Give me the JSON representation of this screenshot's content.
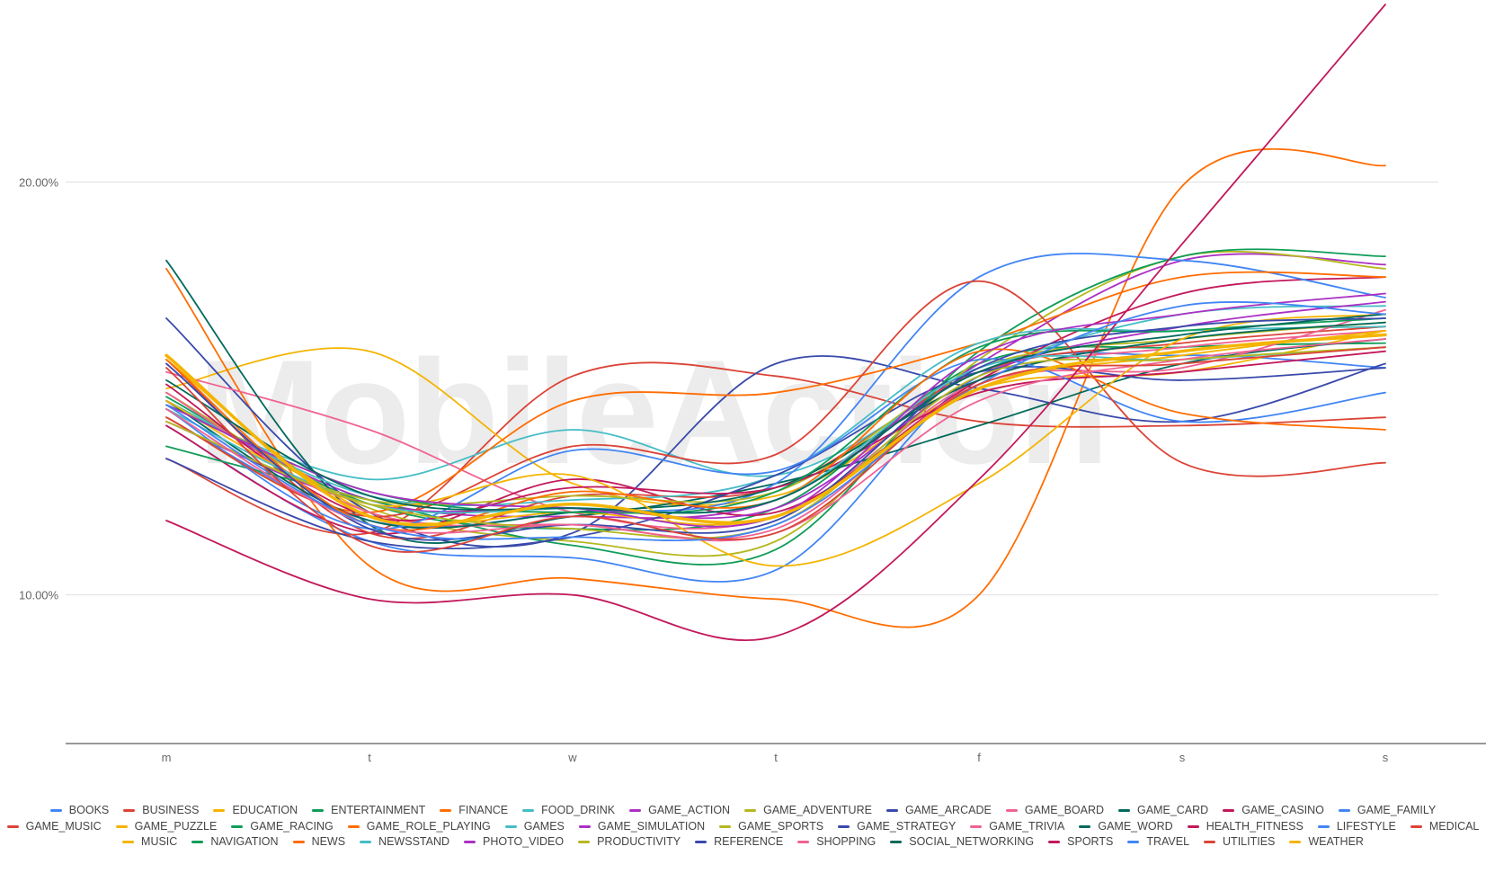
{
  "watermark": "MobileAction",
  "chart_data": {
    "type": "line",
    "title": "",
    "xlabel": "",
    "ylabel": "",
    "categories": [
      "m",
      "t",
      "w",
      "t",
      "f",
      "s",
      "s"
    ],
    "y_ticks": [
      {
        "value": 20,
        "label": "20.00%"
      },
      {
        "value": 10,
        "label": "10.00%"
      }
    ],
    "ylim": [
      6.4,
      24.3
    ],
    "grid": true,
    "legend_position": "bottom",
    "series": [
      {
        "name": "BOOKS",
        "color": "#4285f4",
        "values": [
          14.1,
          11.3,
          10.9,
          10.6,
          15.3,
          15.8,
          15.5
        ]
      },
      {
        "name": "BUSINESS",
        "color": "#db4437",
        "values": [
          13.3,
          11.5,
          15.3,
          15.3,
          14.2,
          14.1,
          14.3
        ]
      },
      {
        "name": "EDUCATION",
        "color": "#f4b400",
        "values": [
          15.0,
          15.9,
          12.7,
          12.4,
          15.0,
          15.4,
          16.4
        ]
      },
      {
        "name": "ENTERTAINMENT",
        "color": "#0f9d58",
        "values": [
          14.8,
          12.2,
          11.6,
          12.1,
          15.6,
          16.0,
          16.1
        ]
      },
      {
        "name": "FINANCE",
        "color": "#ff6d00",
        "values": [
          17.9,
          10.7,
          10.4,
          9.9,
          10.0,
          19.9,
          20.4
        ]
      },
      {
        "name": "FOOD_DRINK",
        "color": "#46bdc6",
        "values": [
          14.6,
          12.8,
          14.0,
          12.9,
          15.4,
          16.8,
          17.0
        ]
      },
      {
        "name": "GAME_ACTION",
        "color": "#ab30c4",
        "values": [
          14.7,
          12.3,
          11.9,
          12.3,
          15.6,
          18.1,
          18.0
        ]
      },
      {
        "name": "GAME_ADVENTURE",
        "color": "#b5b820",
        "values": [
          14.9,
          12.1,
          11.3,
          11.3,
          15.7,
          18.2,
          17.9
        ]
      },
      {
        "name": "GAME_ARCADE",
        "color": "#3949ab",
        "values": [
          16.7,
          12.0,
          11.5,
          15.6,
          15.0,
          14.2,
          15.6
        ]
      },
      {
        "name": "GAME_BOARD",
        "color": "#f06292",
        "values": [
          15.4,
          14.0,
          12.0,
          11.9,
          15.2,
          16.0,
          16.4
        ]
      },
      {
        "name": "GAME_CARD",
        "color": "#00695c",
        "values": [
          18.1,
          11.7,
          11.9,
          12.7,
          14.1,
          15.6,
          16.2
        ]
      },
      {
        "name": "GAME_CASINO",
        "color": "#c2185b",
        "values": [
          14.1,
          11.5,
          12.8,
          12.0,
          15.2,
          17.3,
          17.7
        ]
      },
      {
        "name": "GAME_FAMILY",
        "color": "#4285f4",
        "values": [
          14.3,
          11.8,
          12.0,
          12.7,
          17.7,
          18.1,
          17.2
        ]
      },
      {
        "name": "GAME_MUSIC",
        "color": "#db4437",
        "values": [
          15.7,
          11.5,
          12.4,
          12.6,
          15.4,
          16.1,
          16.5
        ]
      },
      {
        "name": "GAME_PUZZLE",
        "color": "#f4b400",
        "values": [
          15.7,
          12.0,
          12.0,
          11.9,
          15.0,
          15.8,
          16.4
        ]
      },
      {
        "name": "GAME_RACING",
        "color": "#0f9d58",
        "values": [
          13.6,
          12.3,
          11.2,
          11.1,
          15.9,
          18.2,
          18.2
        ]
      },
      {
        "name": "GAME_ROLE_PLAYING",
        "color": "#ff6d00",
        "values": [
          14.3,
          12.0,
          14.7,
          14.9,
          16.1,
          17.7,
          17.7
        ]
      },
      {
        "name": "GAMES",
        "color": "#46bdc6",
        "values": [
          14.7,
          12.4,
          12.3,
          12.9,
          16.1,
          16.4,
          16.5
        ]
      },
      {
        "name": "GAME_SIMULATION",
        "color": "#ab30c4",
        "values": [
          14.2,
          12.2,
          12.1,
          12.1,
          15.3,
          16.5,
          17.1
        ]
      },
      {
        "name": "GAME_SPORTS",
        "color": "#b5b820",
        "values": [
          14.2,
          12.3,
          12.4,
          12.5,
          15.5,
          16.2,
          16.6
        ]
      },
      {
        "name": "GAME_STRATEGY",
        "color": "#3949ab",
        "values": [
          13.3,
          11.3,
          11.4,
          12.9,
          15.4,
          15.2,
          15.5
        ]
      },
      {
        "name": "GAME_TRIVIA",
        "color": "#f06292",
        "values": [
          14.9,
          12.0,
          11.7,
          11.6,
          15.1,
          15.5,
          16.9
        ]
      },
      {
        "name": "GAME_WORD",
        "color": "#00695c",
        "values": [
          14.7,
          11.8,
          12.0,
          12.6,
          15.2,
          16.2,
          16.6
        ]
      },
      {
        "name": "HEALTH_FITNESS",
        "color": "#c2185b",
        "values": [
          15.1,
          11.9,
          12.6,
          12.6,
          14.9,
          15.4,
          15.9
        ]
      },
      {
        "name": "LIFESTYLE",
        "color": "#4285f4",
        "values": [
          14.5,
          11.6,
          13.5,
          13.0,
          15.7,
          14.2,
          14.9
        ]
      },
      {
        "name": "MEDICAL",
        "color": "#db4437",
        "values": [
          14.3,
          11.9,
          13.6,
          13.4,
          17.6,
          13.2,
          13.2
        ]
      },
      {
        "name": "MUSIC",
        "color": "#f4b400",
        "values": [
          14.7,
          12.2,
          12.9,
          10.7,
          12.7,
          16.2,
          16.8
        ]
      },
      {
        "name": "NAVIGATION",
        "color": "#0f9d58",
        "values": [
          14.6,
          12.5,
          12.0,
          12.5,
          16.0,
          16.4,
          16.7
        ]
      },
      {
        "name": "NEWS",
        "color": "#ff6d00",
        "values": [
          15.7,
          11.7,
          12.5,
          12.3,
          15.9,
          14.4,
          14.0
        ]
      },
      {
        "name": "NEWSSTAND",
        "color": "#46bdc6",
        "values": [
          14.5,
          12.2,
          12.1,
          12.3,
          15.5,
          15.7,
          16.0
        ]
      },
      {
        "name": "PHOTO_VIDEO",
        "color": "#ab30c4",
        "values": [
          14.6,
          12.5,
          12.1,
          11.9,
          15.8,
          16.8,
          17.3
        ]
      },
      {
        "name": "PRODUCTIVITY",
        "color": "#b5b820",
        "values": [
          14.2,
          12.2,
          11.6,
          11.7,
          15.3,
          15.7,
          16.0
        ]
      },
      {
        "name": "REFERENCE",
        "color": "#3949ab",
        "values": [
          15.6,
          11.6,
          11.7,
          11.8,
          15.5,
          16.5,
          16.7
        ]
      },
      {
        "name": "SHOPPING",
        "color": "#f06292",
        "values": [
          14.5,
          11.7,
          11.7,
          11.5,
          14.7,
          15.7,
          16.2
        ]
      },
      {
        "name": "SOCIAL_NETWORKING",
        "color": "#00695c",
        "values": [
          15.2,
          12.4,
          12.1,
          12.3,
          15.4,
          16.3,
          16.8
        ]
      },
      {
        "name": "SPORTS",
        "color": "#c2185b",
        "values": [
          11.8,
          9.9,
          10.0,
          9.0,
          12.8,
          18.5,
          24.3
        ]
      },
      {
        "name": "TRAVEL",
        "color": "#4285f4",
        "values": [
          14.6,
          11.7,
          11.4,
          11.7,
          15.1,
          17.0,
          16.8
        ]
      },
      {
        "name": "UTILITIES",
        "color": "#db4437",
        "values": [
          15.5,
          11.2,
          11.9,
          11.5,
          15.1,
          15.6,
          16.0
        ]
      },
      {
        "name": "WEATHER",
        "color": "#f4b400",
        "values": [
          15.8,
          11.9,
          12.2,
          11.9,
          15.0,
          15.9,
          16.3
        ]
      }
    ]
  }
}
